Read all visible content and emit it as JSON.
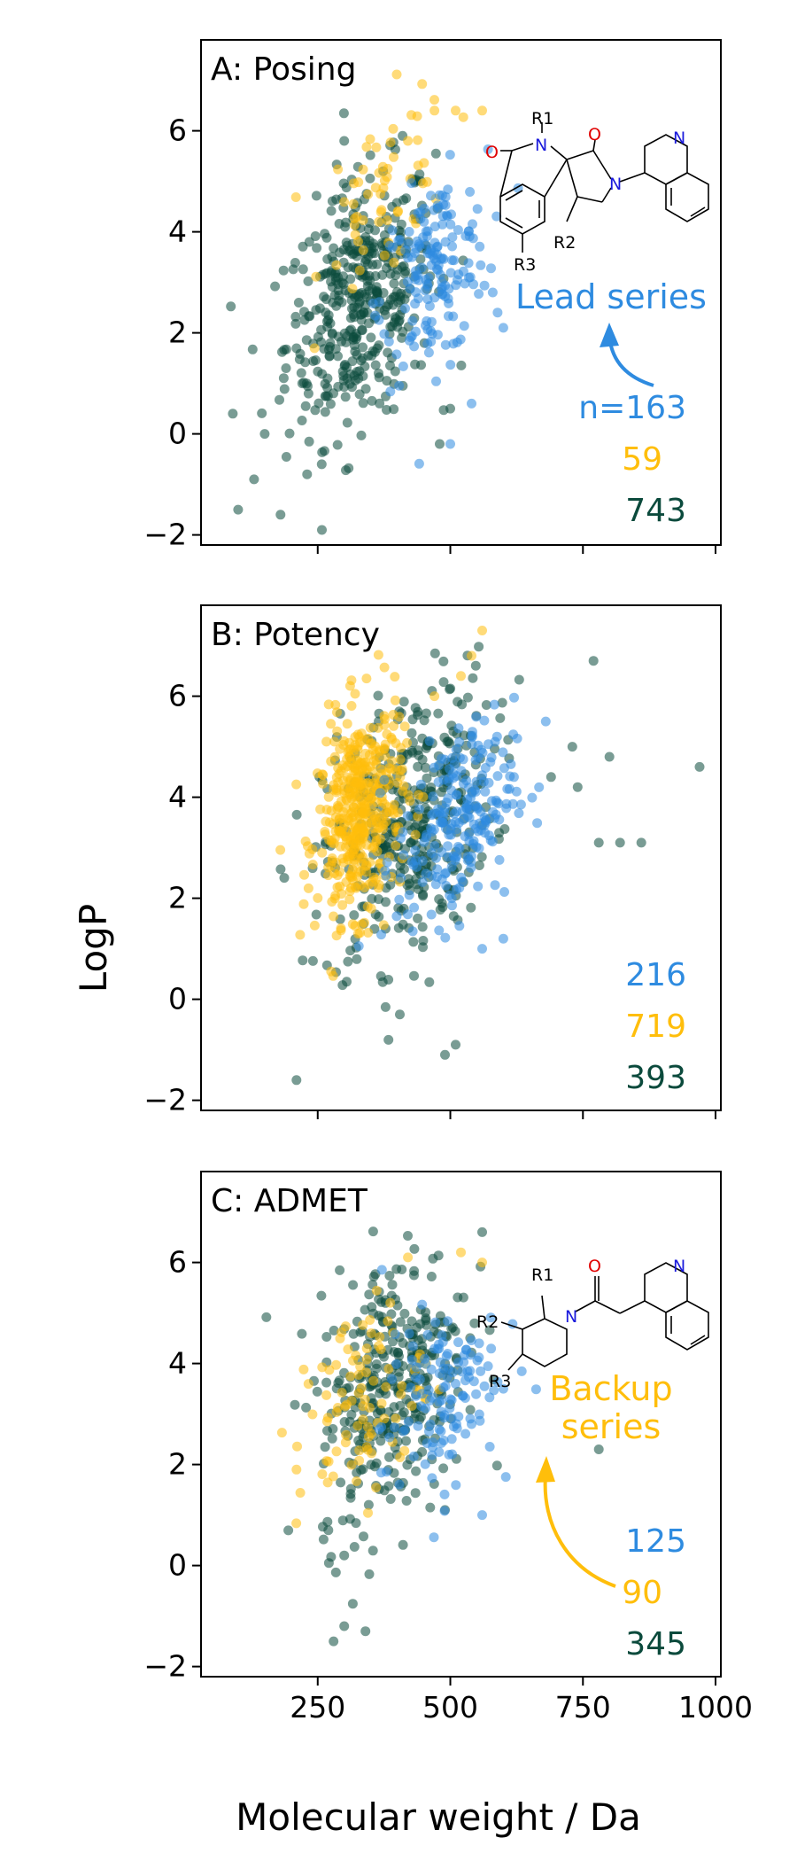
{
  "figure": {
    "xlabel": "Molecular weight / Da",
    "ylabel": "LogP",
    "colors": {
      "blue": "#2e8be0",
      "yellow": "#ffbe0b",
      "green": "#0b4a3c"
    }
  },
  "chart_data": [
    {
      "type": "scatter",
      "panel_label": "A: Posing",
      "xlim": [
        30,
        1010
      ],
      "ylim": [
        -2.2,
        7.8
      ],
      "xticks": [
        250,
        500,
        750,
        1000
      ],
      "yticks": [
        -2,
        0,
        2,
        4,
        6
      ],
      "show_x_tick_labels": false,
      "series": [
        {
          "color": "green",
          "count": 743,
          "center": [
            330,
            2.6
          ],
          "spread": [
            70,
            1.2
          ],
          "extra": [
            [
              100,
              -1.5
            ],
            [
              130,
              -0.9
            ],
            [
              180,
              -1.6
            ],
            [
              90,
              0.4
            ],
            [
              150,
              0.0
            ],
            [
              230,
              -0.8
            ],
            [
              480,
              -0.2
            ],
            [
              500,
              0.5
            ],
            [
              300,
              5.8
            ],
            [
              410,
              5.9
            ]
          ]
        },
        {
          "color": "yellow",
          "count": 59,
          "center": [
            380,
            4.8
          ],
          "spread": [
            60,
            0.9
          ],
          "extra": [
            [
              470,
              6.4
            ],
            [
              510,
              6.4
            ],
            [
              560,
              6.4
            ],
            [
              420,
              5.8
            ]
          ]
        },
        {
          "color": "blue",
          "count": 163,
          "center": [
            470,
            3.2
          ],
          "spread": [
            50,
            0.9
          ],
          "extra": [
            [
              540,
              0.6
            ],
            [
              600,
              2.1
            ],
            [
              580,
              2.8
            ],
            [
              500,
              -0.2
            ]
          ]
        }
      ],
      "counts": [
        "n=163",
        "59",
        "743"
      ],
      "annotation": "Lead series",
      "structure_labels": [
        "R1",
        "R2",
        "R3",
        "O",
        "O",
        "N",
        "N",
        "N"
      ]
    },
    {
      "type": "scatter",
      "panel_label": "B: Potency",
      "xlim": [
        30,
        1010
      ],
      "ylim": [
        -2.2,
        7.8
      ],
      "xticks": [
        250,
        500,
        750,
        1000
      ],
      "yticks": [
        -2,
        0,
        2,
        4,
        6
      ],
      "show_x_tick_labels": false,
      "series": [
        {
          "color": "green",
          "count": 393,
          "center": [
            420,
            3.5
          ],
          "spread": [
            80,
            1.3
          ],
          "extra": [
            [
              210,
              -1.6
            ],
            [
              490,
              -1.1
            ],
            [
              510,
              -0.9
            ],
            [
              770,
              6.7
            ],
            [
              730,
              5.0
            ],
            [
              800,
              4.8
            ],
            [
              820,
              3.1
            ],
            [
              860,
              3.1
            ],
            [
              780,
              3.1
            ],
            [
              970,
              4.6
            ],
            [
              690,
              4.4
            ],
            [
              740,
              4.2
            ]
          ]
        },
        {
          "color": "yellow",
          "count": 719,
          "center": [
            330,
            3.7
          ],
          "spread": [
            40,
            1.0
          ],
          "extra": [
            [
              560,
              7.3
            ],
            [
              540,
              6.8
            ],
            [
              520,
              6.4
            ],
            [
              470,
              6.0
            ]
          ]
        },
        {
          "color": "blue",
          "count": 216,
          "center": [
            510,
            3.5
          ],
          "spread": [
            55,
            0.9
          ],
          "extra": [
            [
              680,
              5.5
            ],
            [
              620,
              4.4
            ],
            [
              560,
              1.0
            ],
            [
              600,
              1.2
            ]
          ]
        }
      ],
      "counts": [
        "216",
        "719",
        "393"
      ]
    },
    {
      "type": "scatter",
      "panel_label": "C: ADMET",
      "xlim": [
        30,
        1010
      ],
      "ylim": [
        -2.2,
        7.8
      ],
      "xticks": [
        250,
        500,
        750,
        1000
      ],
      "yticks": [
        -2,
        0,
        2,
        4,
        6
      ],
      "show_x_tick_labels": true,
      "series": [
        {
          "color": "green",
          "count": 345,
          "center": [
            390,
            3.6
          ],
          "spread": [
            70,
            1.3
          ],
          "extra": [
            [
              280,
              -1.5
            ],
            [
              300,
              -1.2
            ],
            [
              340,
              -1.3
            ],
            [
              300,
              0.2
            ],
            [
              270,
              0.7
            ],
            [
              560,
              6.6
            ],
            [
              780,
              2.3
            ],
            [
              490,
              1.1
            ]
          ]
        },
        {
          "color": "yellow",
          "count": 90,
          "center": [
            330,
            3.2
          ],
          "spread": [
            60,
            1.0
          ],
          "extra": [
            [
              210,
              1.9
            ],
            [
              420,
              6.1
            ],
            [
              520,
              6.2
            ],
            [
              560,
              6.0
            ]
          ]
        },
        {
          "color": "blue",
          "count": 125,
          "center": [
            480,
            3.3
          ],
          "spread": [
            55,
            0.9
          ],
          "extra": [
            [
              560,
              1.0
            ],
            [
              540,
              2.8
            ],
            [
              600,
              3.5
            ]
          ]
        }
      ],
      "counts": [
        "125",
        "90",
        "345"
      ],
      "annotation_lines": [
        "Backup",
        "series"
      ],
      "structure_labels": [
        "R1",
        "R2",
        "R3",
        "O",
        "N",
        "N"
      ]
    }
  ]
}
